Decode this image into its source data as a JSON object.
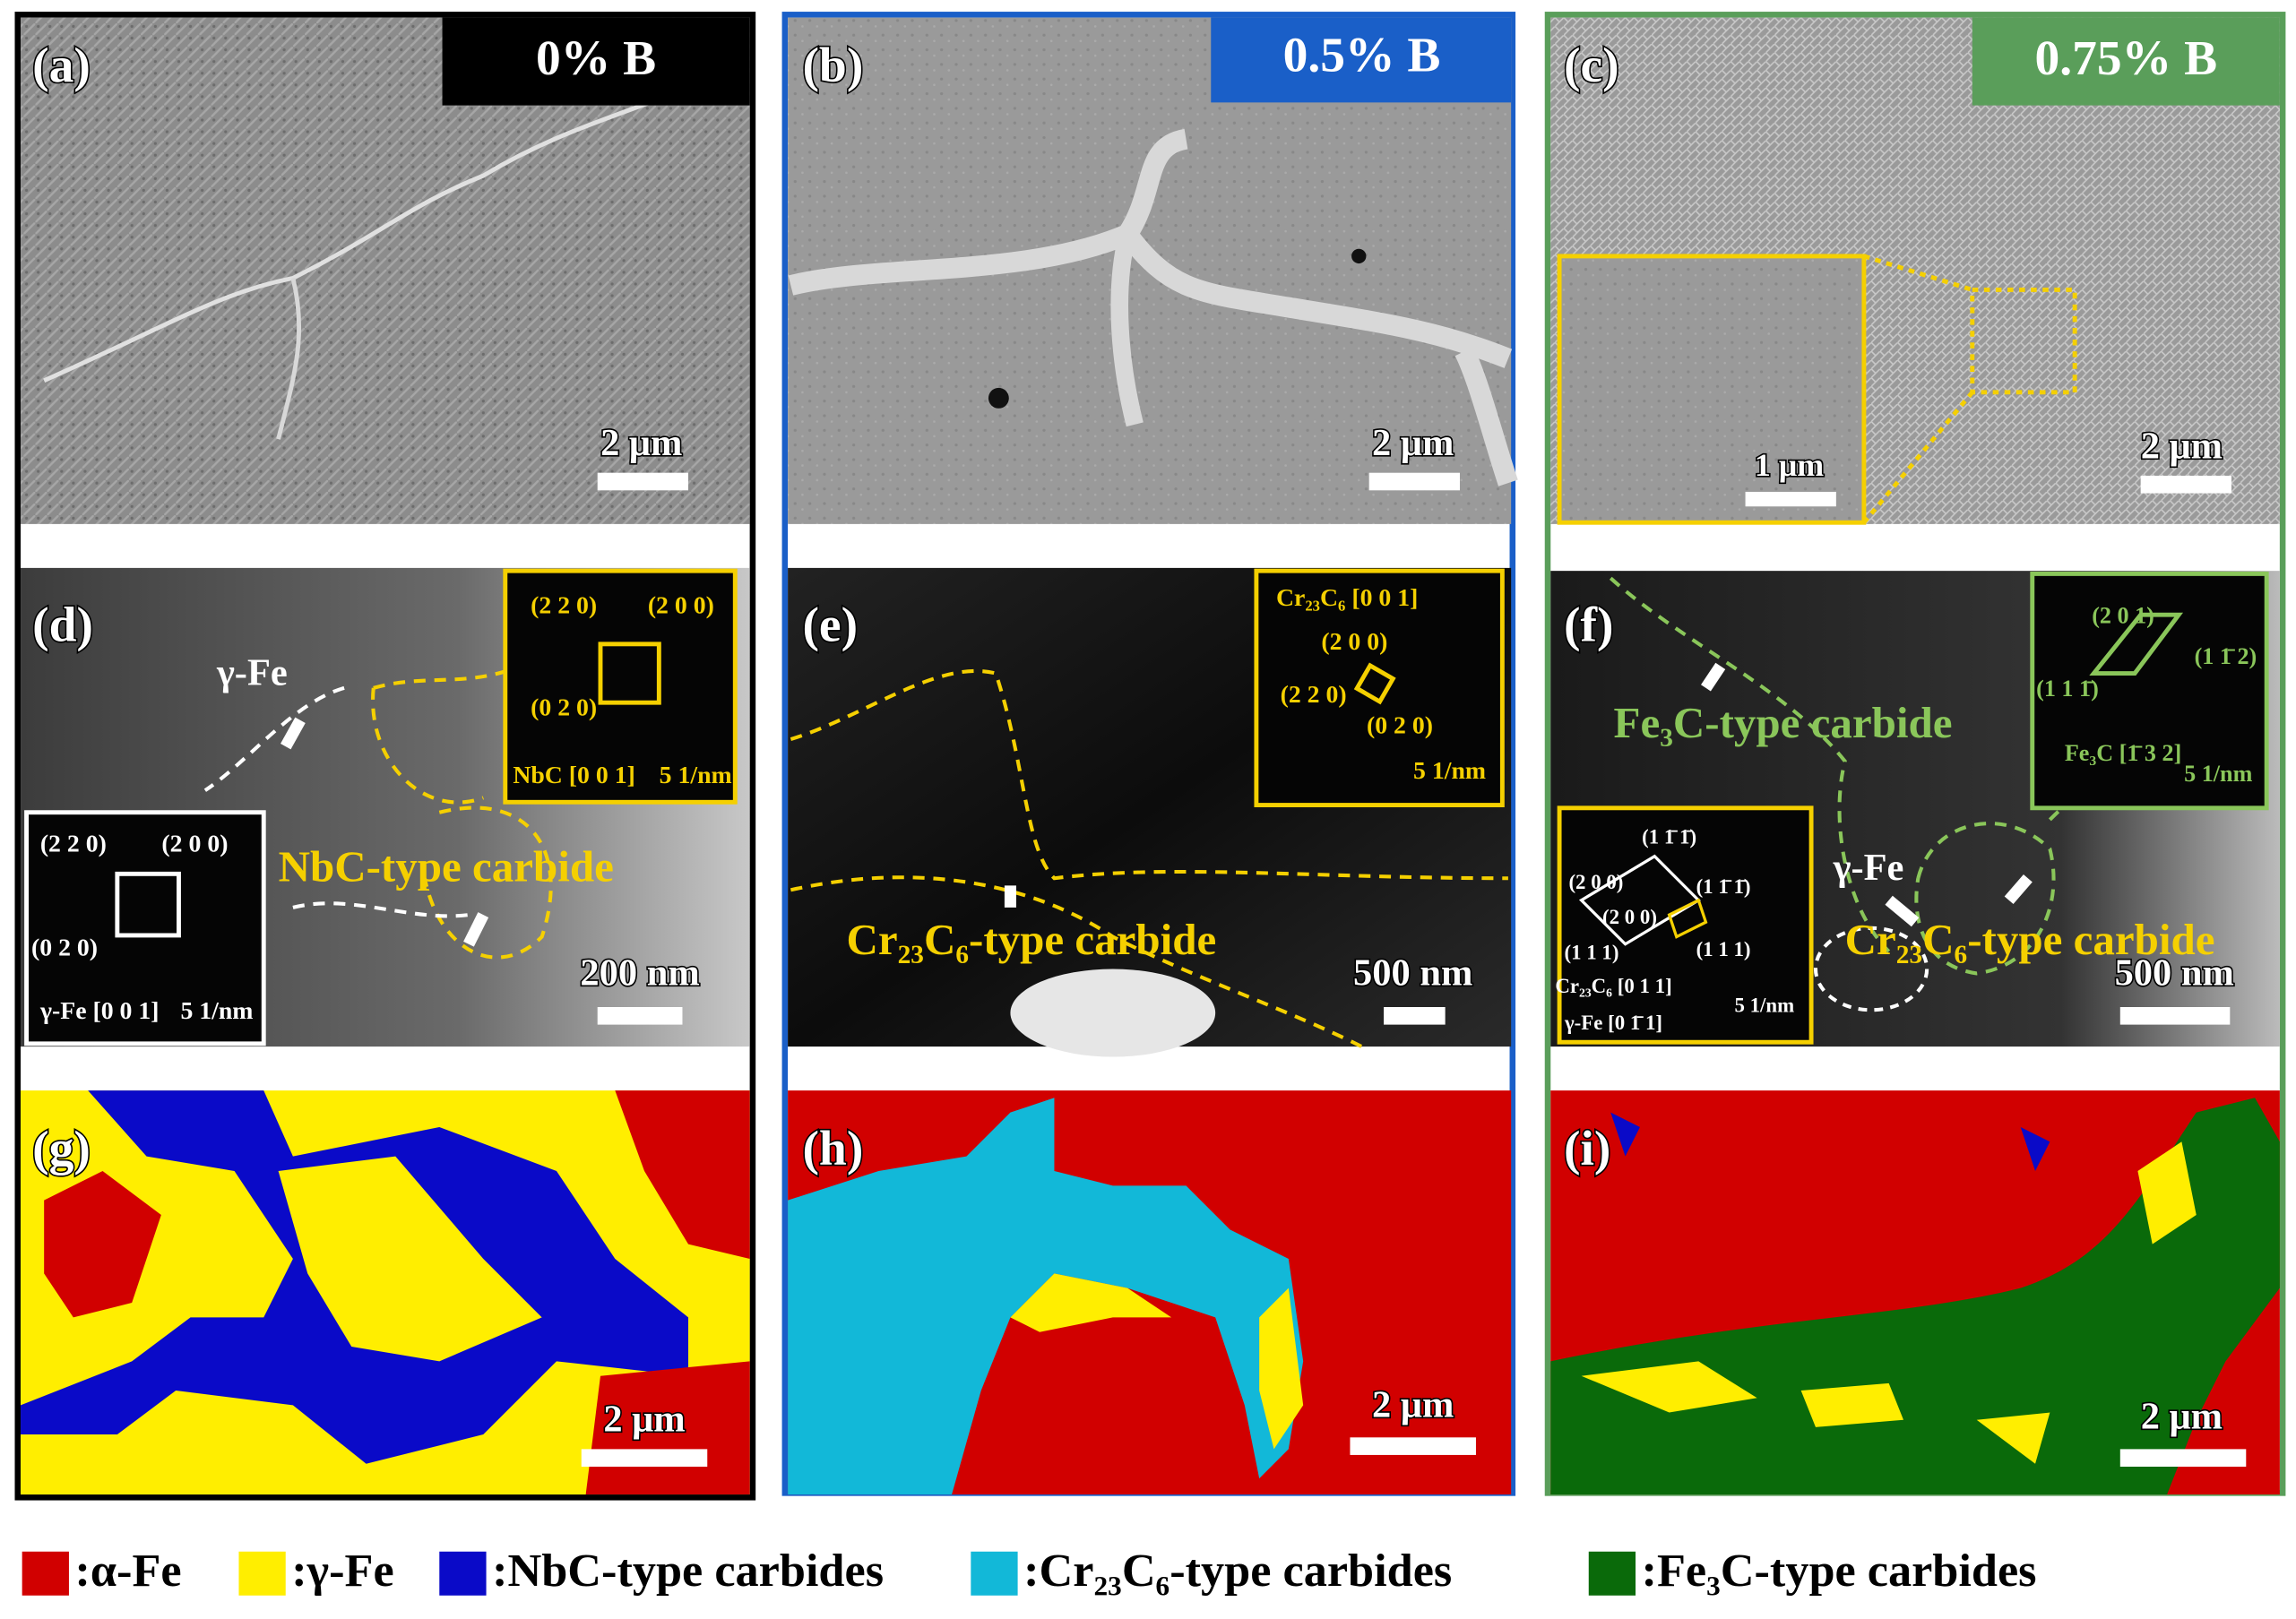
{
  "headers": [
    "0% B",
    "0.5% B",
    "0.75% B"
  ],
  "panels": [
    {
      "label": "(a)",
      "scale_bar": "2 μm"
    },
    {
      "label": "(b)",
      "scale_bar": "2 μm"
    },
    {
      "label": "(c)",
      "scale_bar": "2 μm",
      "inset_scale_bar": "1 μm"
    },
    {
      "label": "(d)",
      "scale_bar": "200 nm",
      "annotations": [
        "γ-Fe",
        "NbC-type carbide"
      ],
      "saed": [
        [
          "(2 2 0)",
          "(2 0 0)",
          "(0 2 0)",
          "NbC [0 0 1]",
          "5 1/nm"
        ],
        [
          "(2 2 0)",
          "(2 0 0)",
          "(0 2 0)",
          "γ-Fe [0 0 1]",
          "5 1/nm"
        ]
      ]
    },
    {
      "label": "(e)",
      "scale_bar": "500 nm",
      "annotations": [
        "Cr₂₃C₆-type carbide"
      ],
      "saed": [
        [
          "Cr₂₃C₆ [0 0 1]",
          "(2 0 0)",
          "(2 2 0)",
          "(0 2 0)",
          "5 1/nm"
        ]
      ]
    },
    {
      "label": "(f)",
      "scale_bar": "500 nm",
      "annotations": [
        "Fe₃C-type carbide",
        "γ-Fe",
        "Cr₂₃C₆-type carbide"
      ],
      "saed": [
        [
          "(2 0 1)",
          "(1 1̄ 2)",
          "(1 1 1̄)",
          "Fe₃C [1̄ 3 2]",
          "5 1/nm"
        ],
        [
          "(1 1̄ 1̄)",
          "(2 0 0)",
          "(1 1̄ 1̄)",
          "(2 0 0)",
          "(1 1 1)",
          "(1 1 1)",
          "Cr₂₃C₆ [0 1 1]",
          "γ-Fe [0 1̄ 1]",
          "5 1/nm"
        ]
      ]
    },
    {
      "label": "(g)",
      "scale_bar": "2 μm"
    },
    {
      "label": "(h)",
      "scale_bar": "2 μm"
    },
    {
      "label": "(i)",
      "scale_bar": "2 μm"
    }
  ],
  "legend": [
    {
      "label": ":α-Fe",
      "color": "#d10000"
    },
    {
      "label": ":γ-Fe",
      "color": "#ffee00"
    },
    {
      "label": ":NbC-type carbides",
      "color": "#0a0ac8"
    },
    {
      "label": ":Cr₂₃C₆-type carbides",
      "color": "#12b8d8"
    },
    {
      "label": ":Fe₃C-type carbides",
      "color": "#0a6a0a"
    }
  ]
}
